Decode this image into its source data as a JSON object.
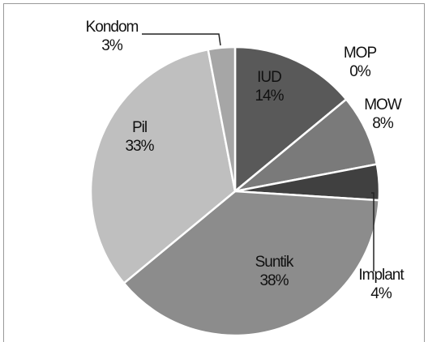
{
  "chart_data": {
    "type": "pie",
    "categories": [
      "IUD",
      "MOP",
      "MOW",
      "Implant",
      "Suntik",
      "Pil",
      "Kondom"
    ],
    "values": [
      14,
      0,
      8,
      4,
      38,
      33,
      3
    ],
    "value_labels": [
      "14%",
      "0%",
      "8%",
      "4%",
      "38%",
      "33%",
      "3%"
    ],
    "colors": [
      "#595959",
      "#d9d9d9",
      "#7a7a7a",
      "#404040",
      "#8c8c8c",
      "#bfbfbf",
      "#a6a6a6"
    ]
  }
}
